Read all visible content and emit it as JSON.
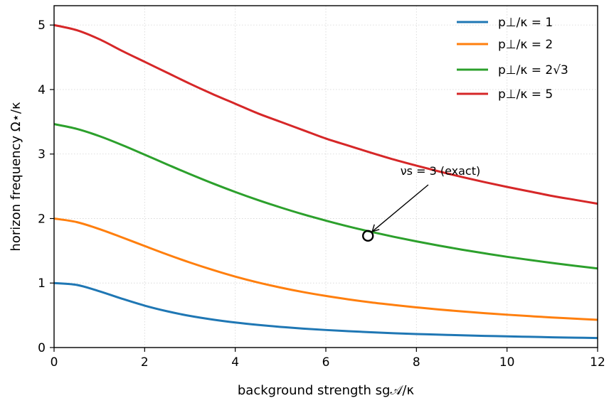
{
  "chart_data": {
    "type": "line",
    "title": "",
    "xlabel": "background strength  sg𝒜/κ",
    "ylabel": "horizon frequency  Ω⋆/κ",
    "xlim": [
      0,
      12
    ],
    "ylim": [
      0,
      5.3
    ],
    "xticks": [
      0,
      2,
      4,
      6,
      8,
      10,
      12
    ],
    "yticks": [
      0,
      1,
      2,
      3,
      4,
      5
    ],
    "xtick_labels": [
      "0",
      "2",
      "4",
      "6",
      "8",
      "10",
      "12"
    ],
    "ytick_labels": [
      "0",
      "1",
      "2",
      "3",
      "4",
      "5"
    ],
    "grid": true,
    "legend_position": "top-right",
    "x": [
      0,
      0.5,
      1,
      1.5,
      2,
      2.5,
      3,
      3.5,
      4,
      4.5,
      5,
      5.5,
      6,
      6.5,
      7,
      7.5,
      8,
      8.5,
      9,
      9.5,
      10,
      10.5,
      11,
      11.5,
      12
    ],
    "series": [
      {
        "name": "p⊥/κ = 1",
        "color": "#1f77b4",
        "values": [
          1.0,
          0.971,
          0.873,
          0.757,
          0.65,
          0.562,
          0.49,
          0.434,
          0.388,
          0.351,
          0.32,
          0.294,
          0.272,
          0.254,
          0.237,
          0.222,
          0.21,
          0.2,
          0.19,
          0.181,
          0.173,
          0.166,
          0.159,
          0.153,
          0.148
        ]
      },
      {
        "name": "p⊥/κ = 2",
        "color": "#ff7f0e",
        "values": [
          2.0,
          1.945,
          1.837,
          1.708,
          1.574,
          1.442,
          1.318,
          1.204,
          1.1,
          1.009,
          0.93,
          0.86,
          0.8,
          0.747,
          0.7,
          0.66,
          0.623,
          0.59,
          0.56,
          0.533,
          0.509,
          0.487,
          0.466,
          0.448,
          0.43
        ]
      },
      {
        "name": "p⊥/κ = 2√3",
        "color": "#2ca02c",
        "values": [
          3.464,
          3.39,
          3.278,
          3.14,
          2.99,
          2.838,
          2.688,
          2.546,
          2.412,
          2.287,
          2.172,
          2.065,
          1.968,
          1.877,
          1.794,
          1.717,
          1.646,
          1.58,
          1.518,
          1.461,
          1.407,
          1.358,
          1.311,
          1.267,
          1.226
        ]
      },
      {
        "name": "p⊥/κ = 5",
        "color": "#d62728",
        "values": [
          5.0,
          4.92,
          4.78,
          4.6,
          4.43,
          4.26,
          4.09,
          3.93,
          3.78,
          3.63,
          3.5,
          3.37,
          3.24,
          3.13,
          3.02,
          2.915,
          2.82,
          2.73,
          2.645,
          2.565,
          2.49,
          2.42,
          2.35,
          2.29,
          2.23
        ]
      }
    ],
    "legend_entries": [
      {
        "label_main": "p⊥/κ = 1",
        "color": "#1f77b4"
      },
      {
        "label_main": "p⊥/κ = 2",
        "color": "#ff7f0e"
      },
      {
        "label_main": "p⊥/κ = 2√3",
        "color": "#2ca02c"
      },
      {
        "label_main": "p⊥/κ = 5",
        "color": "#d62728"
      }
    ],
    "annotation": {
      "text": "νs = 3 (exact)",
      "point_x": 6.93,
      "point_y": 1.732
    }
  }
}
